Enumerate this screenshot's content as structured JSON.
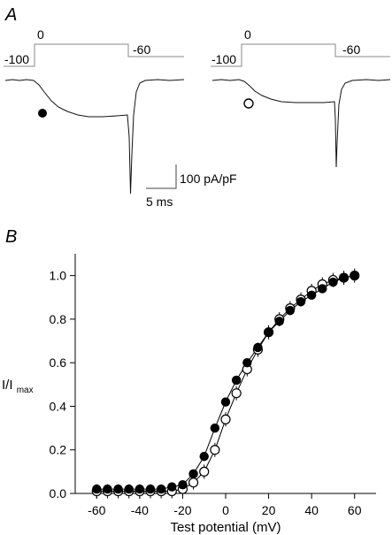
{
  "figure": {
    "panel_a_label": "A",
    "panel_b_label": "B"
  },
  "panel_a": {
    "left_trace": {
      "protocol_labels": {
        "hold": "-100",
        "step": "0",
        "tail": "-60"
      },
      "marker": "filled-circle"
    },
    "right_trace": {
      "protocol_labels": {
        "hold": "-100",
        "step": "0",
        "tail": "-60"
      },
      "marker": "open-circle"
    },
    "scale_bar": {
      "current_label": "100 pA/pF",
      "time_label": "5 ms"
    }
  },
  "chart_data": {
    "type": "scatter",
    "title": "",
    "xlabel": "Test potential (mV)",
    "ylabel_main": "I/I",
    "ylabel_sub": "max",
    "xlim": [
      -70,
      70
    ],
    "ylim": [
      0,
      1.1
    ],
    "x_ticks": [
      -60,
      -40,
      -20,
      0,
      20,
      40,
      60
    ],
    "y_ticks": [
      0.0,
      0.2,
      0.4,
      0.6,
      0.8,
      1.0
    ],
    "x_tick_labels": [
      "-60",
      "-40",
      "-20",
      "0",
      "20",
      "40",
      "60"
    ],
    "y_tick_labels": [
      "0.0",
      "0.2",
      "0.4",
      "0.6",
      "0.8",
      "1.0"
    ],
    "grid": false,
    "legend": "none",
    "series": [
      {
        "marker": "filled-circle",
        "x": [
          -60,
          -55,
          -50,
          -45,
          -40,
          -35,
          -30,
          -25,
          -20,
          -15,
          -10,
          -5,
          0,
          5,
          10,
          15,
          20,
          25,
          30,
          35,
          40,
          45,
          50,
          55,
          60
        ],
        "y": [
          0.02,
          0.02,
          0.02,
          0.02,
          0.02,
          0.02,
          0.02,
          0.03,
          0.04,
          0.09,
          0.17,
          0.3,
          0.42,
          0.52,
          0.6,
          0.67,
          0.74,
          0.79,
          0.84,
          0.88,
          0.91,
          0.94,
          0.97,
          0.99,
          1.0
        ]
      },
      {
        "marker": "open-circle",
        "x": [
          -60,
          -55,
          -50,
          -45,
          -40,
          -35,
          -30,
          -25,
          -20,
          -15,
          -10,
          -5,
          0,
          5,
          10,
          15,
          20,
          25,
          30,
          35,
          40,
          45,
          50,
          55,
          60
        ],
        "y": [
          0.01,
          0.01,
          0.01,
          0.01,
          0.01,
          0.01,
          0.01,
          0.01,
          0.02,
          0.05,
          0.1,
          0.2,
          0.34,
          0.46,
          0.57,
          0.66,
          0.74,
          0.8,
          0.85,
          0.89,
          0.93,
          0.96,
          0.98,
          0.99,
          1.0
        ]
      }
    ]
  }
}
